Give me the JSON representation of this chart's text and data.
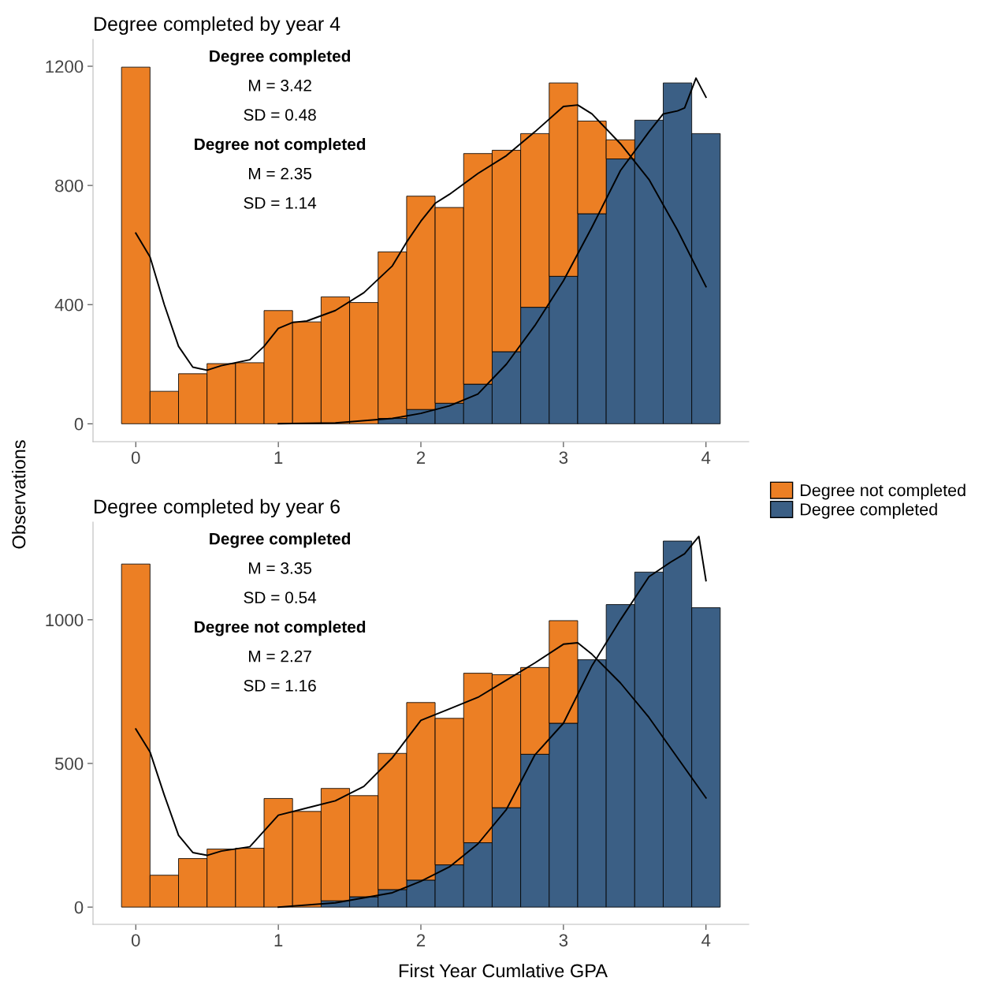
{
  "chart_data": [
    {
      "type": "bar",
      "title": "Degree completed by year 4",
      "ylabel": "Observations",
      "stacked": true,
      "legend": "right",
      "x": [
        0,
        0.2,
        0.4,
        0.6,
        0.8,
        1.0,
        1.2,
        1.4,
        1.6,
        1.8,
        2.0,
        2.2,
        2.4,
        2.6,
        2.8,
        3.0,
        3.2,
        3.4,
        3.6,
        3.8,
        4.0
      ],
      "series": [
        {
          "name": "Degree completed",
          "color": "#3b5f85",
          "values": [
            0,
            0,
            0,
            0,
            0,
            0,
            0,
            0,
            0,
            18,
            48,
            69,
            133,
            242,
            391,
            495,
            705,
            889,
            1019,
            1144,
            974
          ]
        },
        {
          "name": "Degree not completed",
          "color": "#ec7f24",
          "values": [
            1197,
            109,
            168,
            202,
            205,
            380,
            342,
            426,
            407,
            559,
            716,
            657,
            774,
            676,
            583,
            649,
            311,
            64,
            0,
            0,
            0
          ]
        },
        {
          "type": "line",
          "color": "#000000",
          "x": [
            0,
            0.1,
            0.2,
            0.3,
            0.4,
            0.5,
            0.6,
            0.8,
            0.9,
            1.0,
            1.1,
            1.2,
            1.4,
            1.6,
            1.8,
            1.9,
            2.0,
            2.1,
            2.2,
            2.4,
            2.6,
            2.8,
            3.0,
            3.1,
            3.2,
            3.4,
            3.6,
            3.8,
            4.0
          ],
          "values": [
            640,
            560,
            400,
            260,
            190,
            180,
            195,
            215,
            260,
            320,
            340,
            345,
            380,
            440,
            530,
            610,
            680,
            740,
            770,
            840,
            900,
            980,
            1065,
            1070,
            1040,
            940,
            820,
            650,
            460
          ]
        },
        {
          "type": "line",
          "color": "#000000",
          "x": [
            1.0,
            1.4,
            1.8,
            2.0,
            2.2,
            2.4,
            2.6,
            2.8,
            3.0,
            3.2,
            3.4,
            3.6,
            3.7,
            3.8,
            3.85,
            3.93,
            4.0
          ],
          "values": [
            0,
            3,
            18,
            35,
            60,
            100,
            200,
            330,
            480,
            660,
            850,
            980,
            1040,
            1050,
            1060,
            1160,
            1096
          ]
        }
      ],
      "xlim": [
        -0.3,
        4.3
      ],
      "xticks": [
        0,
        1,
        2,
        3,
        4
      ],
      "ylim": [
        -60,
        1290
      ],
      "yticks": [
        0,
        400,
        800,
        1200
      ],
      "grid": false,
      "annotations": [
        "Degree completed",
        "M = 3.42",
        "SD = 0.48",
        "Degree not completed",
        "M = 2.35",
        "SD = 1.14"
      ]
    },
    {
      "type": "bar",
      "title": "Degree completed by year 6",
      "xlabel": "First Year Cumlative GPA",
      "stacked": true,
      "x": [
        0,
        0.2,
        0.4,
        0.6,
        0.8,
        1.0,
        1.2,
        1.4,
        1.6,
        1.8,
        2.0,
        2.2,
        2.4,
        2.6,
        2.8,
        3.0,
        3.2,
        3.4,
        3.6,
        3.8,
        4.0
      ],
      "series": [
        {
          "color": "#3b5f85",
          "values": [
            0,
            0,
            0,
            0,
            0,
            0,
            0,
            22,
            36,
            61,
            94,
            147,
            224,
            346,
            532,
            640,
            861,
            1053,
            1166,
            1274,
            1042
          ]
        },
        {
          "color": "#ec7f24",
          "values": [
            1194,
            111,
            169,
            202,
            205,
            378,
            333,
            391,
            352,
            474,
            618,
            510,
            590,
            463,
            302,
            357,
            0,
            0,
            0,
            0,
            0
          ]
        },
        {
          "type": "line",
          "color": "#000000",
          "x": [
            0,
            0.1,
            0.2,
            0.3,
            0.4,
            0.5,
            0.6,
            0.8,
            1.0,
            1.2,
            1.4,
            1.6,
            1.8,
            2.0,
            2.2,
            2.4,
            2.6,
            2.8,
            3.0,
            3.1,
            3.2,
            3.4,
            3.6,
            3.8,
            4.0
          ],
          "values": [
            620,
            540,
            390,
            250,
            190,
            180,
            195,
            210,
            320,
            345,
            370,
            420,
            520,
            650,
            690,
            730,
            790,
            850,
            915,
            920,
            880,
            780,
            660,
            520,
            380
          ]
        },
        {
          "type": "line",
          "color": "#000000",
          "x": [
            1.0,
            1.4,
            1.8,
            2.0,
            2.2,
            2.4,
            2.6,
            2.8,
            3.0,
            3.2,
            3.4,
            3.6,
            3.75,
            3.85,
            3.95,
            4.0
          ],
          "values": [
            0,
            15,
            50,
            90,
            140,
            220,
            340,
            530,
            640,
            840,
            1000,
            1150,
            1200,
            1230,
            1290,
            1136
          ]
        }
      ],
      "xlim": [
        -0.3,
        4.3
      ],
      "xticks": [
        0,
        1,
        2,
        3,
        4
      ],
      "ylim": [
        -60,
        1340
      ],
      "yticks": [
        0,
        500,
        1000
      ],
      "grid": false,
      "annotations": [
        "Degree completed",
        "M = 3.35",
        "SD = 0.54",
        "Degree not completed",
        "M = 2.27",
        "SD = 1.16"
      ]
    }
  ]
}
